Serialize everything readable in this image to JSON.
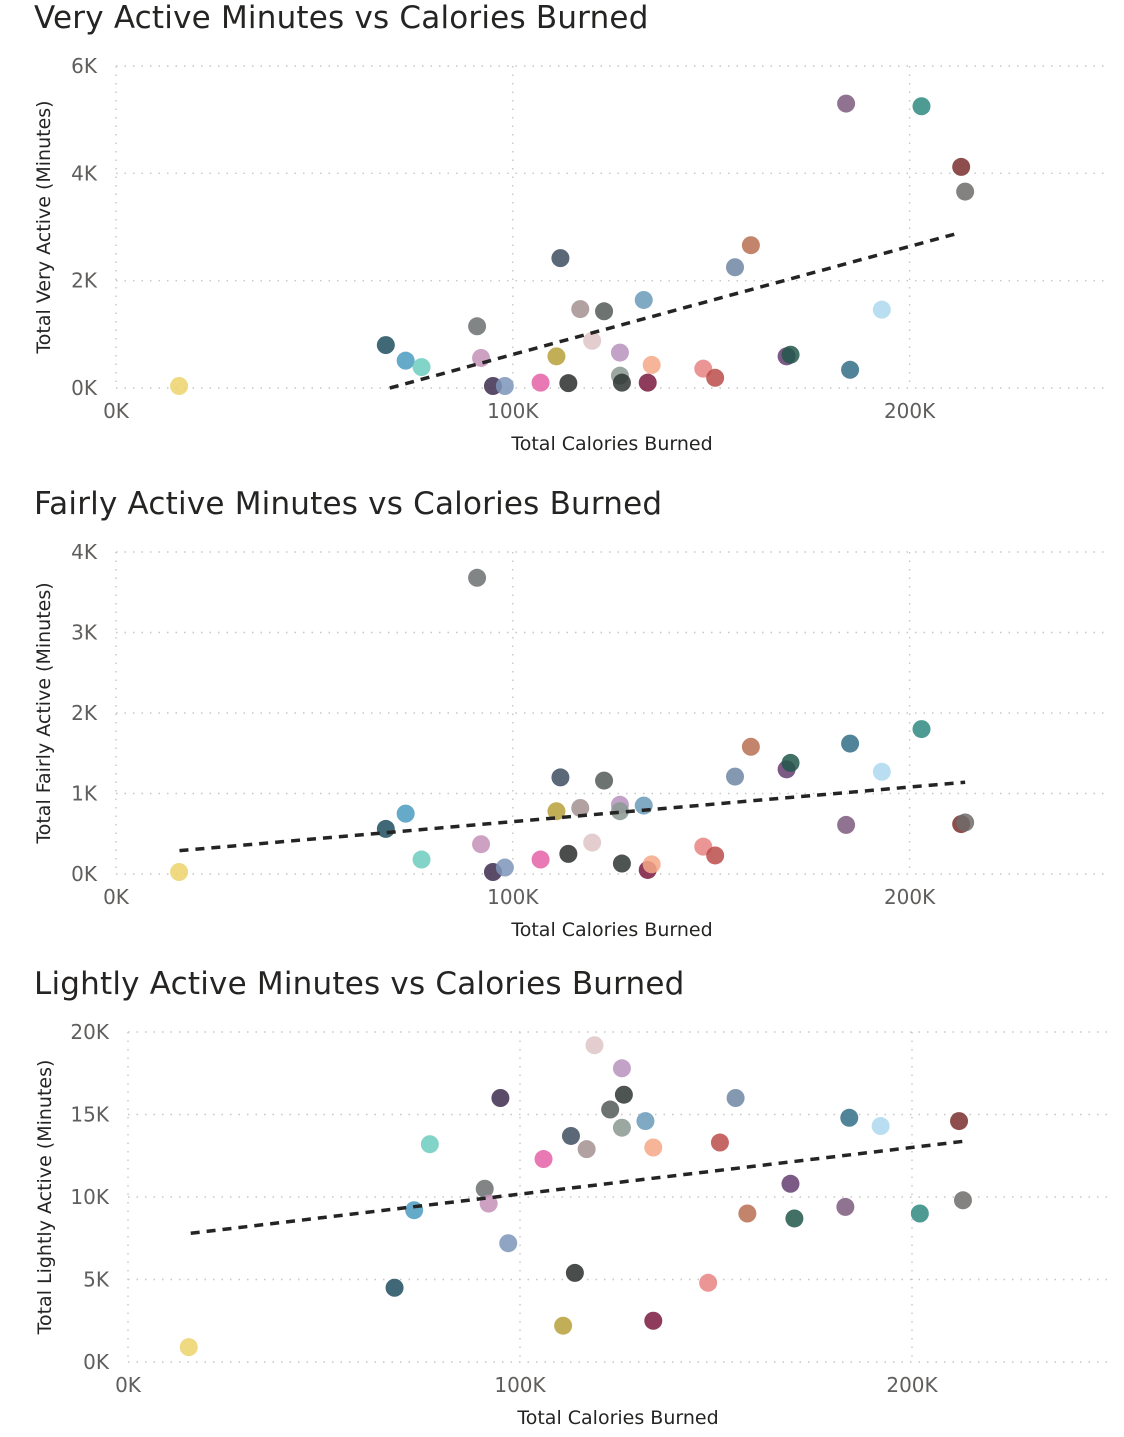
{
  "chart_data": [
    {
      "type": "scatter",
      "title": "Very Active Minutes vs Calories Burned",
      "xlabel": "Total Calories Burned",
      "ylabel": "Total Very Active (Minutes)",
      "xlim": [
        0,
        250000
      ],
      "ylim": [
        0,
        6000
      ],
      "xticks": [
        0,
        100000,
        200000
      ],
      "xtick_labels": [
        "0K",
        "100K",
        "200K"
      ],
      "yticks": [
        0,
        2000,
        4000,
        6000
      ],
      "ytick_labels": [
        "0K",
        "2K",
        "4K",
        "6K"
      ],
      "grid": true,
      "trendline": {
        "x": [
          69000,
          212000
        ],
        "y": [
          0,
          2880
        ]
      },
      "points": [
        {
          "x": 15900,
          "y": 0,
          "color": "#ecd36b"
        },
        {
          "x": 68000,
          "y": 800,
          "color": "#1f4e5f"
        },
        {
          "x": 73000,
          "y": 510,
          "color": "#4a9bc0"
        },
        {
          "x": 77000,
          "y": 390,
          "color": "#6ccbbe"
        },
        {
          "x": 91000,
          "y": 1150,
          "color": "#6b7070"
        },
        {
          "x": 92000,
          "y": 560,
          "color": "#c391b7"
        },
        {
          "x": 95000,
          "y": 0,
          "color": "#3d2b4f"
        },
        {
          "x": 98000,
          "y": 0,
          "color": "#7d94b8"
        },
        {
          "x": 107000,
          "y": 100,
          "color": "#e462a8"
        },
        {
          "x": 111000,
          "y": 590,
          "color": "#b7a03a"
        },
        {
          "x": 112000,
          "y": 2420,
          "color": "#3e4e60"
        },
        {
          "x": 114000,
          "y": 90,
          "color": "#2a2e2c"
        },
        {
          "x": 117000,
          "y": 1470,
          "color": "#a39190"
        },
        {
          "x": 120000,
          "y": 880,
          "color": "#dec4c5"
        },
        {
          "x": 123000,
          "y": 1430,
          "color": "#545a58"
        },
        {
          "x": 127000,
          "y": 660,
          "color": "#b892bd"
        },
        {
          "x": 127000,
          "y": 230,
          "color": "#8a9992"
        },
        {
          "x": 127500,
          "y": 100,
          "color": "#2f3634"
        },
        {
          "x": 134000,
          "y": 100,
          "color": "#7a1940"
        },
        {
          "x": 135000,
          "y": 430,
          "color": "#f4a886"
        },
        {
          "x": 133000,
          "y": 1640,
          "color": "#6a9ab9"
        },
        {
          "x": 148000,
          "y": 360,
          "color": "#e88282"
        },
        {
          "x": 151000,
          "y": 190,
          "color": "#bb4c4a"
        },
        {
          "x": 156000,
          "y": 2250,
          "color": "#6f87a3"
        },
        {
          "x": 160000,
          "y": 2660,
          "color": "#b86e52"
        },
        {
          "x": 169000,
          "y": 590,
          "color": "#643d70"
        },
        {
          "x": 170000,
          "y": 620,
          "color": "#22574a"
        },
        {
          "x": 184000,
          "y": 5300,
          "color": "#7c5a7c"
        },
        {
          "x": 185000,
          "y": 340,
          "color": "#326e87"
        },
        {
          "x": 193000,
          "y": 1460,
          "color": "#aed8ef"
        },
        {
          "x": 203000,
          "y": 5250,
          "color": "#2e8a80"
        },
        {
          "x": 213000,
          "y": 4120,
          "color": "#7b2f2f"
        },
        {
          "x": 214000,
          "y": 3660,
          "color": "#6e6c6a"
        }
      ]
    },
    {
      "type": "scatter",
      "title": "Fairly Active Minutes vs Calories Burned",
      "xlabel": "Total Calories Burned",
      "ylabel": "Total Fairly Active (Minutes)",
      "xlim": [
        0,
        250000
      ],
      "ylim": [
        0,
        4000
      ],
      "xticks": [
        0,
        100000,
        200000
      ],
      "xtick_labels": [
        "0K",
        "100K",
        "200K"
      ],
      "yticks": [
        0,
        1000,
        2000,
        3000,
        4000
      ],
      "ytick_labels": [
        "0K",
        "1K",
        "2K",
        "3K",
        "4K"
      ],
      "grid": true,
      "trendline": {
        "x": [
          16000,
          214000
        ],
        "y": [
          290,
          1140
        ]
      },
      "points": [
        {
          "x": 15900,
          "y": 20,
          "color": "#ecd36b"
        },
        {
          "x": 68000,
          "y": 560,
          "color": "#1f4e5f"
        },
        {
          "x": 73000,
          "y": 750,
          "color": "#4a9bc0"
        },
        {
          "x": 77000,
          "y": 180,
          "color": "#6ccbbe"
        },
        {
          "x": 91000,
          "y": 3680,
          "color": "#6b7070"
        },
        {
          "x": 92000,
          "y": 370,
          "color": "#c391b7"
        },
        {
          "x": 95000,
          "y": 20,
          "color": "#3d2b4f"
        },
        {
          "x": 98000,
          "y": 80,
          "color": "#7d94b8"
        },
        {
          "x": 107000,
          "y": 180,
          "color": "#e462a8"
        },
        {
          "x": 111000,
          "y": 780,
          "color": "#b7a03a"
        },
        {
          "x": 112000,
          "y": 1200,
          "color": "#3e4e60"
        },
        {
          "x": 114000,
          "y": 250,
          "color": "#2a2e2c"
        },
        {
          "x": 117000,
          "y": 820,
          "color": "#a39190"
        },
        {
          "x": 120000,
          "y": 390,
          "color": "#dec4c5"
        },
        {
          "x": 123000,
          "y": 1160,
          "color": "#545a58"
        },
        {
          "x": 127000,
          "y": 860,
          "color": "#b892bd"
        },
        {
          "x": 127000,
          "y": 780,
          "color": "#8a9992"
        },
        {
          "x": 127500,
          "y": 130,
          "color": "#2f3634"
        },
        {
          "x": 134000,
          "y": 50,
          "color": "#7a1940"
        },
        {
          "x": 135000,
          "y": 120,
          "color": "#f4a886"
        },
        {
          "x": 133000,
          "y": 850,
          "color": "#6a9ab9"
        },
        {
          "x": 148000,
          "y": 340,
          "color": "#e88282"
        },
        {
          "x": 151000,
          "y": 230,
          "color": "#bb4c4a"
        },
        {
          "x": 156000,
          "y": 1210,
          "color": "#6f87a3"
        },
        {
          "x": 160000,
          "y": 1580,
          "color": "#b86e52"
        },
        {
          "x": 169000,
          "y": 1300,
          "color": "#643d70"
        },
        {
          "x": 170000,
          "y": 1380,
          "color": "#22574a"
        },
        {
          "x": 184000,
          "y": 610,
          "color": "#7c5a7c"
        },
        {
          "x": 185000,
          "y": 1620,
          "color": "#326e87"
        },
        {
          "x": 193000,
          "y": 1270,
          "color": "#aed8ef"
        },
        {
          "x": 203000,
          "y": 1800,
          "color": "#2e8a80"
        },
        {
          "x": 213000,
          "y": 620,
          "color": "#7b2f2f"
        },
        {
          "x": 214000,
          "y": 640,
          "color": "#6e6c6a"
        }
      ]
    },
    {
      "type": "scatter",
      "title": "Lightly Active Minutes vs Calories Burned",
      "xlabel": "Total Calories Burned",
      "ylabel": "Total Lightly Active (Minutes)",
      "xlim": [
        0,
        250000
      ],
      "ylim": [
        0,
        20000
      ],
      "xticks": [
        0,
        100000,
        200000
      ],
      "xtick_labels": [
        "0K",
        "100K",
        "200K"
      ],
      "yticks": [
        0,
        5000,
        10000,
        15000,
        20000
      ],
      "ytick_labels": [
        "0K",
        "5K",
        "10K",
        "15K",
        "20K"
      ],
      "grid": true,
      "trendline": {
        "x": [
          16000,
          214000
        ],
        "y": [
          7800,
          13400
        ]
      },
      "points": [
        {
          "x": 15500,
          "y": 900,
          "color": "#ecd36b"
        },
        {
          "x": 68000,
          "y": 4500,
          "color": "#1f4e5f"
        },
        {
          "x": 73000,
          "y": 9200,
          "color": "#4a9bc0"
        },
        {
          "x": 77000,
          "y": 13200,
          "color": "#6ccbbe"
        },
        {
          "x": 91000,
          "y": 10500,
          "color": "#6b7070"
        },
        {
          "x": 92000,
          "y": 9600,
          "color": "#c391b7"
        },
        {
          "x": 95000,
          "y": 16000,
          "color": "#3d2b4f"
        },
        {
          "x": 97000,
          "y": 7200,
          "color": "#7d94b8"
        },
        {
          "x": 106000,
          "y": 12300,
          "color": "#e462a8"
        },
        {
          "x": 111000,
          "y": 2200,
          "color": "#b7a03a"
        },
        {
          "x": 113000,
          "y": 13700,
          "color": "#3e4e60"
        },
        {
          "x": 114000,
          "y": 5400,
          "color": "#2a2e2c"
        },
        {
          "x": 117000,
          "y": 12900,
          "color": "#a39190"
        },
        {
          "x": 119000,
          "y": 19200,
          "color": "#dec4c5"
        },
        {
          "x": 123000,
          "y": 15300,
          "color": "#545a58"
        },
        {
          "x": 126000,
          "y": 17800,
          "color": "#b892bd"
        },
        {
          "x": 126000,
          "y": 14200,
          "color": "#8a9992"
        },
        {
          "x": 126500,
          "y": 16200,
          "color": "#2f3634"
        },
        {
          "x": 134000,
          "y": 2500,
          "color": "#7a1940"
        },
        {
          "x": 134000,
          "y": 13000,
          "color": "#f4a886"
        },
        {
          "x": 132000,
          "y": 14600,
          "color": "#6a9ab9"
        },
        {
          "x": 148000,
          "y": 4800,
          "color": "#e88282"
        },
        {
          "x": 151000,
          "y": 13300,
          "color": "#bb4c4a"
        },
        {
          "x": 155000,
          "y": 16000,
          "color": "#6f87a3"
        },
        {
          "x": 158000,
          "y": 9000,
          "color": "#b86e52"
        },
        {
          "x": 169000,
          "y": 10800,
          "color": "#643d70"
        },
        {
          "x": 170000,
          "y": 8700,
          "color": "#22574a"
        },
        {
          "x": 183000,
          "y": 9400,
          "color": "#7c5a7c"
        },
        {
          "x": 184000,
          "y": 14800,
          "color": "#326e87"
        },
        {
          "x": 192000,
          "y": 14300,
          "color": "#aed8ef"
        },
        {
          "x": 202000,
          "y": 9000,
          "color": "#2e8a80"
        },
        {
          "x": 212000,
          "y": 14600,
          "color": "#7b2f2f"
        },
        {
          "x": 213000,
          "y": 9800,
          "color": "#6e6c6a"
        }
      ]
    }
  ]
}
